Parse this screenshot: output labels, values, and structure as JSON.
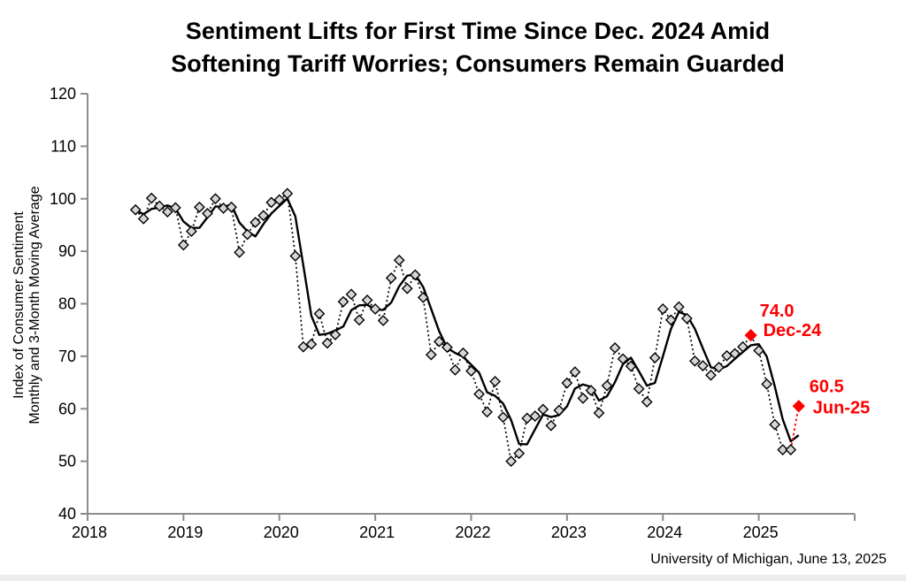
{
  "title": {
    "line1": "Sentiment Lifts for First Time Since Dec. 2024 Amid",
    "line2": "Softening Tariff Worries; Consumers Remain Guarded"
  },
  "y_axis": {
    "label_line1": "Index of Consumer Sentiment",
    "label_line2": "Monthly and 3-Month Moving Average",
    "ticks": [
      120,
      110,
      100,
      90,
      80,
      70,
      60,
      50,
      40
    ],
    "min": 40,
    "max": 120
  },
  "x_axis": {
    "year_labels": [
      "2018",
      "2019",
      "2020",
      "2021",
      "2022",
      "2023",
      "2024",
      "2025"
    ]
  },
  "footer": {
    "source": "University of Michigan, June 13, 2025"
  },
  "colors": {
    "highlight_red": "#ff0000",
    "marker_fill": "#d6d6d6",
    "marker_stroke": "#000000",
    "line_black": "#000000",
    "axis_gray": "#8c8c8c"
  },
  "chart_data": {
    "type": "line",
    "title": "Sentiment Lifts for First Time Since Dec. 2024 Amid Softening Tariff Worries; Consumers Remain Guarded",
    "ylabel": "Index of Consumer Sentiment Monthly and 3-Month Moving Average",
    "ylim": [
      40,
      120
    ],
    "xlim_years": [
      2018,
      2026
    ],
    "grid": false,
    "legend": "none",
    "x": [
      "Jul-18",
      "Aug-18",
      "Sep-18",
      "Oct-18",
      "Nov-18",
      "Dec-18",
      "Jan-19",
      "Feb-19",
      "Mar-19",
      "Apr-19",
      "May-19",
      "Jun-19",
      "Jul-19",
      "Aug-19",
      "Sep-19",
      "Oct-19",
      "Nov-19",
      "Dec-19",
      "Jan-20",
      "Feb-20",
      "Mar-20",
      "Apr-20",
      "May-20",
      "Jun-20",
      "Jul-20",
      "Aug-20",
      "Sep-20",
      "Oct-20",
      "Nov-20",
      "Dec-20",
      "Jan-21",
      "Feb-21",
      "Mar-21",
      "Apr-21",
      "May-21",
      "Jun-21",
      "Jul-21",
      "Aug-21",
      "Sep-21",
      "Oct-21",
      "Nov-21",
      "Dec-21",
      "Jan-22",
      "Feb-22",
      "Mar-22",
      "Apr-22",
      "May-22",
      "Jun-22",
      "Jul-22",
      "Aug-22",
      "Sep-22",
      "Oct-22",
      "Nov-22",
      "Dec-22",
      "Jan-23",
      "Feb-23",
      "Mar-23",
      "Apr-23",
      "May-23",
      "Jun-23",
      "Jul-23",
      "Aug-23",
      "Sep-23",
      "Oct-23",
      "Nov-23",
      "Dec-23",
      "Jan-24",
      "Feb-24",
      "Mar-24",
      "Apr-24",
      "May-24",
      "Jun-24",
      "Jul-24",
      "Aug-24",
      "Sep-24",
      "Oct-24",
      "Nov-24",
      "Dec-24",
      "Jan-25",
      "Feb-25",
      "Mar-25",
      "Apr-25",
      "May-25",
      "Jun-25"
    ],
    "series": [
      {
        "name": "Monthly",
        "style": "dotted line with gray diamond markers",
        "values": [
          97.9,
          96.2,
          100.1,
          98.6,
          97.5,
          98.3,
          91.2,
          93.8,
          98.4,
          97.2,
          100.0,
          98.2,
          98.4,
          89.8,
          93.2,
          95.5,
          96.8,
          99.3,
          99.8,
          101.0,
          89.1,
          71.8,
          72.3,
          78.1,
          72.5,
          74.1,
          80.4,
          81.8,
          76.9,
          80.7,
          79.0,
          76.8,
          84.9,
          88.3,
          82.9,
          85.5,
          81.2,
          70.3,
          72.8,
          71.7,
          67.4,
          70.6,
          67.2,
          62.8,
          59.4,
          65.2,
          58.4,
          50.0,
          51.5,
          58.2,
          58.6,
          59.9,
          56.8,
          59.7,
          64.9,
          67.0,
          62.0,
          63.5,
          59.2,
          64.4,
          71.6,
          69.5,
          68.1,
          63.8,
          61.3,
          69.7,
          79.0,
          76.9,
          79.4,
          77.2,
          69.1,
          68.2,
          66.4,
          67.9,
          70.1,
          70.5,
          71.8,
          74.0,
          71.1,
          64.7,
          57.0,
          52.2,
          52.2,
          60.5
        ]
      },
      {
        "name": "3-Month Moving Average",
        "style": "solid black line, no markers",
        "derived": "trailing 3-month average of the Monthly series"
      }
    ],
    "annotations": [
      {
        "value_label": "74.0",
        "date_label": "Dec-24",
        "month": "Dec-24",
        "value": 74.0
      },
      {
        "value_label": "60.5",
        "date_label": "Jun-25",
        "month": "Jun-25",
        "value": 60.5
      }
    ],
    "highlight_note": "Dec-24 and Jun-25 points drawn as red diamonds; May-25 to Jun-25 connector dotted red"
  }
}
